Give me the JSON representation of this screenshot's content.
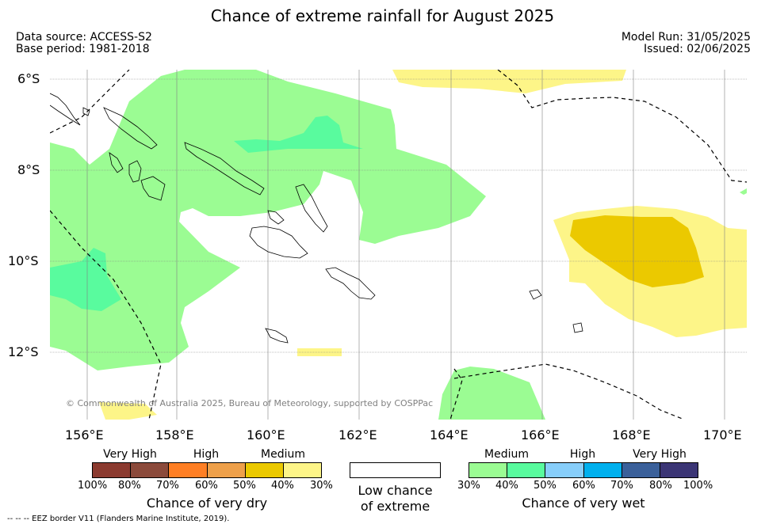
{
  "header": {
    "title": "Chance of extreme rainfall for August 2025",
    "data_source": "Data source: ACCESS-S2",
    "base_period": "Base period: 1981-2018",
    "model_run": "Model Run: 31/05/2025",
    "issued": "Issued: 02/06/2025"
  },
  "map": {
    "lat_labels": [
      "6°S",
      "8°S",
      "10°S",
      "12°S"
    ],
    "lon_labels": [
      "156°E",
      "158°E",
      "160°E",
      "162°E",
      "164°E",
      "166°E",
      "168°E",
      "170°E"
    ],
    "copyright": "© Commonwealth of Australia 2025, Bureau of Meteorology, supported by COSPPac",
    "colors": {
      "wet_medium_light": "#9bfc93",
      "wet_medium": "#59fb9e",
      "dry_medium_light": "#fdf588",
      "dry_medium": "#ebc900"
    }
  },
  "legend": {
    "dry": {
      "categories": [
        "Very High",
        "High",
        "Medium"
      ],
      "ticks": [
        "100%",
        "80%",
        "70%",
        "60%",
        "50%",
        "40%",
        "30%"
      ],
      "colors": [
        "#8b3a2f",
        "#8b4a3b",
        "#ff7f24",
        "#eea04a",
        "#ebc900",
        "#fdf588"
      ],
      "title": "Chance of very dry"
    },
    "low": {
      "line1": "Low chance",
      "line2": "of extreme",
      "color": "#ffffff"
    },
    "wet": {
      "categories": [
        "Medium",
        "High",
        "Very High"
      ],
      "ticks": [
        "30%",
        "40%",
        "50%",
        "60%",
        "70%",
        "80%",
        "100%"
      ],
      "colors": [
        "#9bfc93",
        "#59fb9e",
        "#87cefa",
        "#00b0ee",
        "#3a609a",
        "#3b3575"
      ],
      "title": "Chance of very wet"
    }
  },
  "footnote": "-- -- -- EEZ border V11 (Flanders Marine Institute, 2019)."
}
